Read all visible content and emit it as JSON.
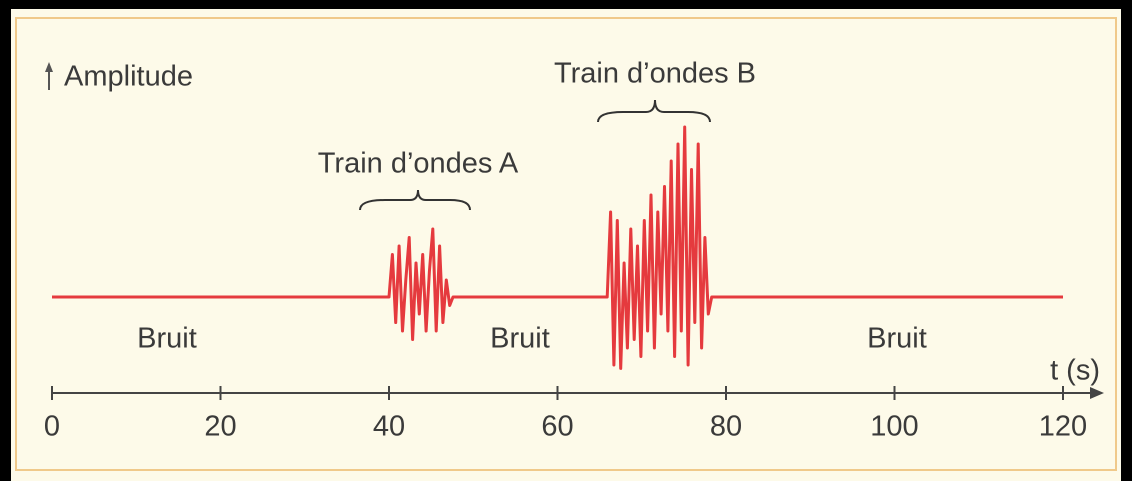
{
  "chart_data": {
    "type": "line",
    "ylabel": "Amplitude",
    "xlabel": "t (s)",
    "xlim": [
      0,
      120
    ],
    "ylim": [
      -1,
      1
    ],
    "xticks": [
      0,
      20,
      40,
      60,
      80,
      100,
      120
    ],
    "annotations": [
      "Train d’ondes A",
      "Train d’ondes B",
      "Bruit",
      "Bruit",
      "Bruit"
    ],
    "series": [
      {
        "color": "#e53a3e",
        "x": [
          0,
          40.0,
          40.4,
          40.8,
          41.2,
          41.6,
          42.0,
          42.4,
          42.8,
          43.2,
          43.6,
          44.0,
          44.4,
          44.8,
          45.2,
          45.6,
          46.0,
          46.4,
          46.8,
          47.2,
          47.6,
          65.9,
          66.3,
          66.7,
          67.1,
          67.5,
          67.9,
          68.3,
          68.7,
          69.1,
          69.5,
          69.9,
          70.3,
          70.7,
          71.1,
          71.5,
          71.9,
          72.3,
          72.7,
          73.1,
          73.5,
          73.9,
          74.3,
          74.7,
          75.1,
          75.5,
          75.9,
          76.3,
          76.7,
          77.1,
          77.5,
          77.9,
          78.3,
          120
        ],
        "values": [
          0,
          0,
          0.25,
          -0.15,
          0.3,
          -0.2,
          0.1,
          0.35,
          -0.25,
          0.2,
          -0.1,
          0.25,
          -0.2,
          0.15,
          0.4,
          -0.2,
          0.3,
          -0.15,
          0.1,
          -0.05,
          0,
          0,
          0.5,
          -0.4,
          0.45,
          -0.42,
          0.2,
          -0.3,
          0.4,
          -0.25,
          0.3,
          -0.35,
          0.45,
          -0.2,
          0.6,
          -0.3,
          0.5,
          -0.1,
          0.65,
          -0.2,
          0.8,
          -0.35,
          0.9,
          -0.2,
          1.0,
          -0.4,
          0.75,
          -0.15,
          0.9,
          -0.3,
          0.35,
          -0.1,
          0,
          0
        ]
      }
    ]
  }
}
